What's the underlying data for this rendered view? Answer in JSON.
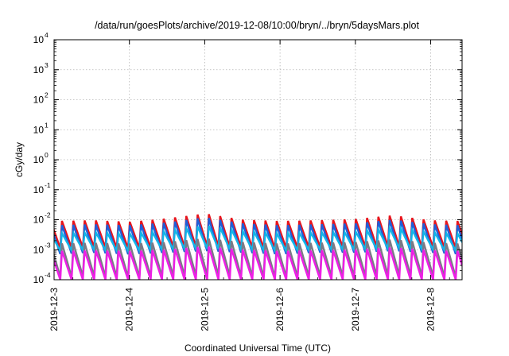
{
  "chart_data": {
    "type": "line",
    "title": "/data/run/goesPlots/archive/2019-12-08/10:00/bryn/../bryn/5daysMars.plot",
    "xlabel": "Coordinated Universal Time (UTC)",
    "ylabel": "cGy/day",
    "yscale": "log",
    "ylim": [
      0.0001,
      10000
    ],
    "xlim": [
      "2019-12-03 00:00",
      "2019-12-08 10:00"
    ],
    "grid": true,
    "x_ticks": [
      "2019-12-3",
      "2019-12-4",
      "2019-12-5",
      "2019-12-6",
      "2019-12-7",
      "2019-12-8"
    ],
    "y_ticks": [
      {
        "value": 0.0001,
        "mantissa": "10",
        "exp": "-4"
      },
      {
        "value": 0.001,
        "mantissa": "10",
        "exp": "-3"
      },
      {
        "value": 0.01,
        "mantissa": "10",
        "exp": "-2"
      },
      {
        "value": 0.1,
        "mantissa": "10",
        "exp": "-1"
      },
      {
        "value": 1,
        "mantissa": "10",
        "exp": "0"
      },
      {
        "value": 10,
        "mantissa": "10",
        "exp": "1"
      },
      {
        "value": 100,
        "mantissa": "10",
        "exp": "2"
      },
      {
        "value": 1000,
        "mantissa": "10",
        "exp": "3"
      },
      {
        "value": 10000,
        "mantissa": "10",
        "exp": "4"
      }
    ],
    "series": [
      {
        "color": "#e8141c",
        "cycle_hours": 3.6,
        "x": [
          "2019-12-03 00:00",
          "2019-12-03 12:00",
          "2019-12-04 00:00",
          "2019-12-04 12:00",
          "2019-12-05 00:00",
          "2019-12-05 12:00",
          "2019-12-06 00:00",
          "2019-12-06 12:00",
          "2019-12-07 00:00",
          "2019-12-07 12:00",
          "2019-12-08 00:00",
          "2019-12-08 10:00"
        ],
        "peaks": [
          0.009,
          0.0095,
          0.0085,
          0.011,
          0.016,
          0.01,
          0.009,
          0.0095,
          0.0105,
          0.014,
          0.0095,
          0.009
        ],
        "troughs": [
          0.0011,
          0.0012,
          0.0011,
          0.0012,
          0.0013,
          0.0012,
          0.0011,
          0.0012,
          0.0012,
          0.0013,
          0.0012,
          0.0011
        ]
      },
      {
        "color": "#1f5fd9",
        "cycle_hours": 3.6,
        "x": [
          "2019-12-03 00:00",
          "2019-12-03 12:00",
          "2019-12-04 00:00",
          "2019-12-04 12:00",
          "2019-12-05 00:00",
          "2019-12-05 12:00",
          "2019-12-06 00:00",
          "2019-12-06 12:00",
          "2019-12-07 00:00",
          "2019-12-07 12:00",
          "2019-12-08 00:00",
          "2019-12-08 10:00"
        ],
        "peaks": [
          0.0065,
          0.007,
          0.0065,
          0.008,
          0.012,
          0.0075,
          0.0065,
          0.007,
          0.0075,
          0.01,
          0.007,
          0.0065
        ],
        "troughs": [
          0.0007,
          0.0008,
          0.0007,
          0.0008,
          0.0009,
          0.0008,
          0.0007,
          0.0008,
          0.0008,
          0.0009,
          0.0008,
          0.0007
        ]
      },
      {
        "color": "#12b5e8",
        "cycle_hours": 3.6,
        "x": [
          "2019-12-03 00:00",
          "2019-12-03 12:00",
          "2019-12-04 00:00",
          "2019-12-04 12:00",
          "2019-12-05 00:00",
          "2019-12-05 12:00",
          "2019-12-06 00:00",
          "2019-12-06 12:00",
          "2019-12-07 00:00",
          "2019-12-07 12:00",
          "2019-12-08 00:00",
          "2019-12-08 10:00"
        ],
        "peaks": [
          0.0035,
          0.0038,
          0.0035,
          0.0042,
          0.0065,
          0.0042,
          0.0035,
          0.0038,
          0.004,
          0.0055,
          0.0038,
          0.0035
        ],
        "troughs": [
          0.0009,
          0.001,
          0.0009,
          0.001,
          0.0011,
          0.001,
          0.0009,
          0.001,
          0.001,
          0.0011,
          0.001,
          0.0009
        ]
      },
      {
        "color": "#7a7a86",
        "cycle_hours": 3.6,
        "x": [
          "2019-12-03 00:00",
          "2019-12-03 12:00",
          "2019-12-04 00:00",
          "2019-12-04 12:00",
          "2019-12-05 00:00",
          "2019-12-05 12:00",
          "2019-12-06 00:00",
          "2019-12-06 12:00",
          "2019-12-07 00:00",
          "2019-12-07 12:00",
          "2019-12-08 00:00",
          "2019-12-08 10:00"
        ],
        "peaks": [
          0.0016,
          0.0017,
          0.0016,
          0.0018,
          0.0024,
          0.0018,
          0.0016,
          0.0017,
          0.0018,
          0.0022,
          0.0017,
          0.0016
        ],
        "troughs": [
          0.00012,
          0.00013,
          0.00012,
          0.00013,
          0.00014,
          0.00013,
          0.00012,
          0.00013,
          0.00013,
          0.00014,
          0.00013,
          0.00012
        ]
      },
      {
        "color": "#ee1ee6",
        "cycle_hours": 3.6,
        "x": [
          "2019-12-03 00:00",
          "2019-12-03 12:00",
          "2019-12-04 00:00",
          "2019-12-04 12:00",
          "2019-12-05 00:00",
          "2019-12-05 12:00",
          "2019-12-06 00:00",
          "2019-12-06 12:00",
          "2019-12-07 00:00",
          "2019-12-07 12:00",
          "2019-12-08 00:00",
          "2019-12-08 10:00"
        ],
        "peaks": [
          0.0009,
          0.00095,
          0.0009,
          0.001,
          0.0013,
          0.001,
          0.0009,
          0.00095,
          0.001,
          0.0012,
          0.00095,
          0.0009
        ],
        "troughs": [
          0.0001,
          0.0001,
          0.0001,
          0.0001,
          0.0001,
          0.0001,
          0.0001,
          0.0001,
          0.0001,
          0.0001,
          0.0001,
          0.0001
        ]
      }
    ]
  }
}
